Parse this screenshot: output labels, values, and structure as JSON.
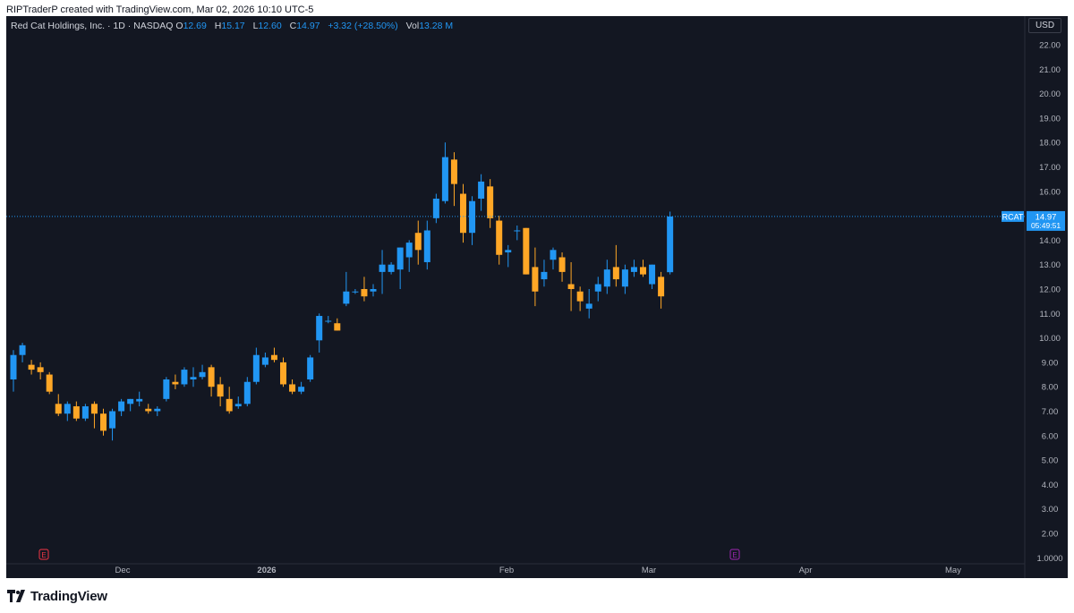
{
  "credit": "RIPTraderP created with TradingView.com, Mar 02, 2026 10:10 UTC-5",
  "legend": {
    "title": "Red Cat Holdings, Inc. · 1D · NASDAQ",
    "o_label": "O",
    "o_value": "12.69",
    "h_label": "H",
    "h_value": "15.17",
    "l_label": "L",
    "l_value": "12.60",
    "c_label": "C",
    "c_value": "14.97",
    "change": "+3.32 (+28.50%)",
    "vol_label": "Vol",
    "vol_value": "13.28 M"
  },
  "currency": "USD",
  "footer": {
    "logo_text": "TradingView"
  },
  "colors": {
    "up": "#2196f3",
    "down": "#ffa726",
    "background": "#131722",
    "grid_text": "#b2b5be",
    "price_line": "#2196f3",
    "earnings": "#f23645",
    "earnings_alt": "#9c27b0"
  },
  "chart_data": {
    "type": "candlestick",
    "symbol": "RCAT",
    "last_price": "14.97",
    "countdown": "05:49:51",
    "y_ticks": [
      "22.00",
      "21.00",
      "20.00",
      "19.00",
      "18.00",
      "17.00",
      "16.00",
      "15.00",
      "14.00",
      "13.00",
      "12.00",
      "11.00",
      "10.00",
      "9.00",
      "8.00",
      "7.00",
      "6.00",
      "5.00",
      "4.00",
      "3.00",
      "2.00",
      "1.0000"
    ],
    "x_ticks": [
      "Dec",
      "2026",
      "Feb",
      "Mar",
      "Apr",
      "May"
    ],
    "earnings_markers": [
      {
        "label": "E",
        "near": "late Nov",
        "color": "#f23645"
      },
      {
        "label": "E",
        "near": "mid Mar",
        "color": "#9c27b0"
      }
    ],
    "candles": [
      [
        8.3,
        9.5,
        7.8,
        9.3
      ],
      [
        9.3,
        9.8,
        9.0,
        9.7
      ],
      [
        8.9,
        9.1,
        8.5,
        8.7
      ],
      [
        8.8,
        9.0,
        8.3,
        8.6
      ],
      [
        8.5,
        8.6,
        7.7,
        7.8
      ],
      [
        7.3,
        7.7,
        6.8,
        6.9
      ],
      [
        6.9,
        7.4,
        6.6,
        7.3
      ],
      [
        7.2,
        7.4,
        6.6,
        6.7
      ],
      [
        6.7,
        7.3,
        6.6,
        7.2
      ],
      [
        7.3,
        7.4,
        6.3,
        6.9
      ],
      [
        6.9,
        7.1,
        6.0,
        6.2
      ],
      [
        6.3,
        7.1,
        5.8,
        7.0
      ],
      [
        7.0,
        7.5,
        6.8,
        7.4
      ],
      [
        7.3,
        7.5,
        7.0,
        7.5
      ],
      [
        7.4,
        7.8,
        7.2,
        7.5
      ],
      [
        7.1,
        7.3,
        6.9,
        7.0
      ],
      [
        7.0,
        7.2,
        6.8,
        7.1
      ],
      [
        7.5,
        8.4,
        7.4,
        8.3
      ],
      [
        8.2,
        8.5,
        7.9,
        8.1
      ],
      [
        8.1,
        8.8,
        8.0,
        8.7
      ],
      [
        8.3,
        8.8,
        8.0,
        8.4
      ],
      [
        8.4,
        8.9,
        8.3,
        8.6
      ],
      [
        8.8,
        8.9,
        7.6,
        8.0
      ],
      [
        8.1,
        8.4,
        7.2,
        7.6
      ],
      [
        7.5,
        8.0,
        6.9,
        7.0
      ],
      [
        7.2,
        7.6,
        7.1,
        7.3
      ],
      [
        7.3,
        8.4,
        7.2,
        8.2
      ],
      [
        8.2,
        9.6,
        8.1,
        9.3
      ],
      [
        8.9,
        9.4,
        8.8,
        9.2
      ],
      [
        9.3,
        9.6,
        9.0,
        9.1
      ],
      [
        9.0,
        9.2,
        8.0,
        8.1
      ],
      [
        8.1,
        8.3,
        7.7,
        7.8
      ],
      [
        7.8,
        8.2,
        7.7,
        8.0
      ],
      [
        8.3,
        9.3,
        8.2,
        9.2
      ],
      [
        9.9,
        11.0,
        9.4,
        10.9
      ],
      [
        10.7,
        10.9,
        10.6,
        10.7
      ],
      [
        10.6,
        10.8,
        10.3,
        10.3
      ],
      [
        11.4,
        12.7,
        11.3,
        11.9
      ],
      [
        11.9,
        12.0,
        11.8,
        11.9
      ],
      [
        12.0,
        12.5,
        11.5,
        11.7
      ],
      [
        11.9,
        12.2,
        11.7,
        12.0
      ],
      [
        12.7,
        13.6,
        11.8,
        13.0
      ],
      [
        12.7,
        13.1,
        12.6,
        13.0
      ],
      [
        12.8,
        13.7,
        12.0,
        13.7
      ],
      [
        13.3,
        14.0,
        12.7,
        13.9
      ],
      [
        14.3,
        14.8,
        13.0,
        13.6
      ],
      [
        13.1,
        14.8,
        12.8,
        14.4
      ],
      [
        14.9,
        15.9,
        14.7,
        15.7
      ],
      [
        15.6,
        18.0,
        15.5,
        17.4
      ],
      [
        17.3,
        17.6,
        15.4,
        16.3
      ],
      [
        15.9,
        16.3,
        13.9,
        14.3
      ],
      [
        14.3,
        15.8,
        13.8,
        15.6
      ],
      [
        15.7,
        16.7,
        15.2,
        16.4
      ],
      [
        16.2,
        16.5,
        14.5,
        14.9
      ],
      [
        14.8,
        15.0,
        13.0,
        13.4
      ],
      [
        13.5,
        13.8,
        12.9,
        13.6
      ],
      [
        14.4,
        14.6,
        14.0,
        14.4
      ],
      [
        14.5,
        14.5,
        12.6,
        12.6
      ],
      [
        12.9,
        13.7,
        11.3,
        11.9
      ],
      [
        12.4,
        13.2,
        12.1,
        12.7
      ],
      [
        13.2,
        13.7,
        12.8,
        13.6
      ],
      [
        13.3,
        13.5,
        12.3,
        12.7
      ],
      [
        12.2,
        13.1,
        11.1,
        12.0
      ],
      [
        11.9,
        12.1,
        11.1,
        11.5
      ],
      [
        11.2,
        12.0,
        10.8,
        11.4
      ],
      [
        11.9,
        12.5,
        11.5,
        12.2
      ],
      [
        12.1,
        13.2,
        11.8,
        12.8
      ],
      [
        12.9,
        13.8,
        12.1,
        12.4
      ],
      [
        12.1,
        13.0,
        11.8,
        12.8
      ],
      [
        12.7,
        13.2,
        12.5,
        12.9
      ],
      [
        12.9,
        13.2,
        12.5,
        12.6
      ],
      [
        12.2,
        13.0,
        12.0,
        13.0
      ],
      [
        12.5,
        12.7,
        11.2,
        11.7
      ],
      [
        12.69,
        15.17,
        12.6,
        14.97
      ]
    ]
  }
}
